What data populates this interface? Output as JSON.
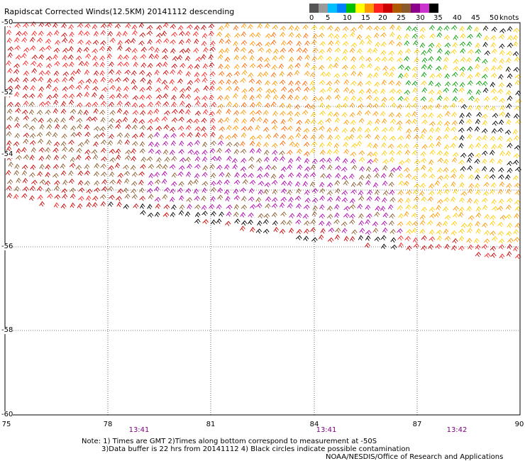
{
  "title": "Rapidscat Corrected Winds(12.5KM) 20141112 descending",
  "legend": {
    "ticks": [
      "0",
      "5",
      "10",
      "15",
      "20",
      "25",
      "30",
      "35",
      "40",
      "45",
      "50"
    ],
    "unit": "knots",
    "colors": [
      "#555555",
      "#9a9a9a",
      "#00bfff",
      "#0080ff",
      "#00c000",
      "#ffff00",
      "#ff9900",
      "#ff2020",
      "#cc0000",
      "#b05a00",
      "#8a5a2a",
      "#8b008b",
      "#cc33cc",
      "#000000"
    ]
  },
  "map": {
    "lon_ticks": [
      "75",
      "78",
      "81",
      "84",
      "87",
      "90"
    ],
    "lat_ticks": [
      "-50",
      "-52",
      "-54",
      "-56",
      "-58",
      "-60"
    ],
    "time_labels": [
      "13:41",
      "13:41",
      "13:42"
    ],
    "background": "#ffffff",
    "grid_color": "#000000"
  },
  "notes": {
    "line1": "Note: 1) Times are GMT 2)Times along bottom correspond to measurement at -50S",
    "line2": "3)Data buffer is 22 hrs from 20141112 4) Black circles indicate possible contamination"
  },
  "credit": "NOAA/NESDIS/Office of Research and Applications"
}
